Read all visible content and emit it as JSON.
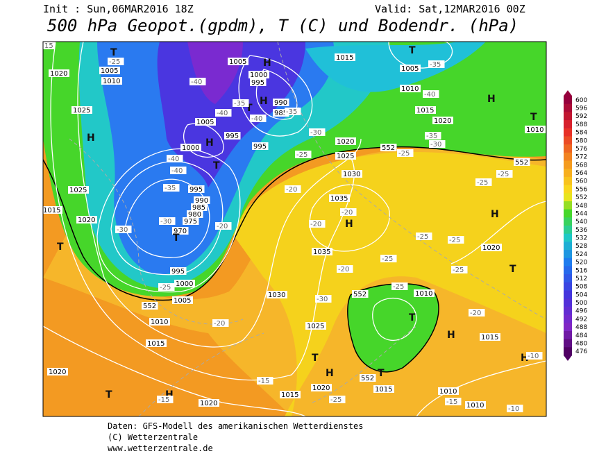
{
  "header": {
    "init": "Init : Sun,06MAR2016 18Z",
    "valid": "Valid: Sat,12MAR2016 00Z",
    "title": "500 hPa Geopot.(gpdm), T (C) und Bodendr. (hPa)"
  },
  "colorbar": {
    "labels": [
      "600",
      "596",
      "592",
      "588",
      "584",
      "580",
      "576",
      "572",
      "568",
      "564",
      "560",
      "556",
      "552",
      "548",
      "544",
      "540",
      "536",
      "532",
      "528",
      "524",
      "520",
      "516",
      "512",
      "508",
      "504",
      "500",
      "496",
      "492",
      "488",
      "484",
      "480",
      "476"
    ]
  },
  "map": {
    "labels": [
      "1020",
      "1005",
      "1010",
      "1025",
      "H",
      "1025",
      "1020",
      "1015",
      "T",
      "1005",
      "1000",
      "995",
      "990",
      "985",
      "1005",
      "1000",
      "995",
      "995",
      "995",
      "990",
      "985",
      "980",
      "975",
      "970",
      "995",
      "1000",
      "1005",
      "552",
      "1010",
      "1015",
      "1020",
      "T",
      "H",
      "1020",
      "1030",
      "1025",
      "1035",
      "1035",
      "1030",
      "1025",
      "1020",
      "1015",
      "1005",
      "1010",
      "1015",
      "1020",
      "552",
      "552",
      "1010",
      "T",
      "H",
      "T",
      "T",
      "H",
      "H",
      "T",
      "H",
      "T",
      "T",
      "H",
      "H",
      "T",
      "H",
      "T",
      "1010",
      "552",
      "552",
      "H",
      "T",
      "1020",
      "1015",
      "1015",
      "1010",
      "1010",
      "1015",
      "H",
      "1020",
      "T",
      "-15",
      "-20",
      "-15",
      "-25",
      "-30",
      "-25",
      "-20",
      "-25",
      "-25",
      "-25",
      "-25",
      "-20",
      "-20",
      "-20",
      "-20",
      "-25",
      "-30",
      "-35",
      "-25",
      "-25",
      "-30",
      "-35",
      "-40",
      "-35",
      "-25",
      "-30",
      "-35",
      "-40",
      "-40",
      "-40",
      "-40",
      "-35",
      "-40",
      "-30",
      "-25",
      "-20",
      "-10",
      "-10",
      "-15",
      "15",
      "-25"
    ]
  },
  "footer": {
    "lines": [
      "Daten: GFS-Modell des amerikanischen Wetterdienstes",
      "(C) Wetterzentrale",
      "www.wetterzentrale.de"
    ]
  }
}
